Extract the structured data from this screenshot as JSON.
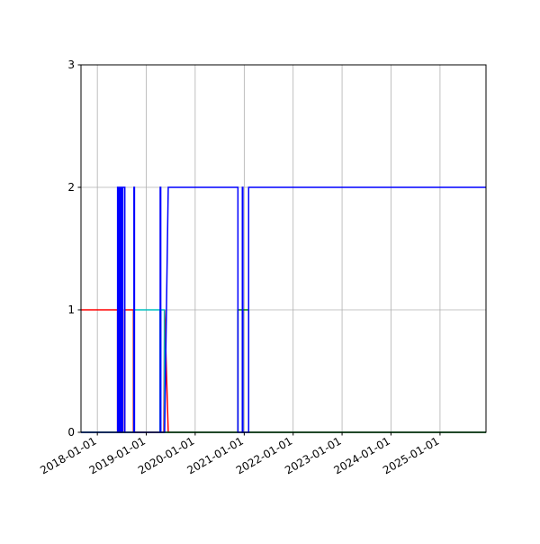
{
  "chart_data": {
    "type": "line",
    "title": "",
    "xlabel": "",
    "ylabel": "",
    "xlim": [
      "2017-09-01",
      "2025-12-10"
    ],
    "ylim": [
      0,
      3
    ],
    "grid": true,
    "x_ticks": [
      "2018-01-01",
      "2019-01-01",
      "2020-01-01",
      "2021-01-01",
      "2022-01-01",
      "2023-01-01",
      "2024-01-01",
      "2025-01-01"
    ],
    "y_ticks": [
      "0",
      "1",
      "2",
      "3"
    ],
    "series": [
      {
        "color": "#ff0000",
        "points": [
          [
            "2017-09-01",
            1
          ],
          [
            "2018-06-01",
            1
          ],
          [
            "2018-06-01",
            0
          ],
          [
            "2018-06-08",
            0
          ],
          [
            "2018-06-08",
            1
          ],
          [
            "2018-06-12",
            1
          ],
          [
            "2018-06-12",
            0
          ],
          [
            "2018-06-20",
            0
          ],
          [
            "2018-06-20",
            1
          ],
          [
            "2018-06-25",
            1
          ],
          [
            "2018-06-25",
            0
          ],
          [
            "2018-07-05",
            0
          ],
          [
            "2018-07-05",
            1
          ],
          [
            "2018-07-10",
            1
          ],
          [
            "2018-07-10",
            0
          ],
          [
            "2018-07-25",
            0
          ],
          [
            "2018-07-25",
            1
          ],
          [
            "2018-09-27",
            1
          ],
          [
            "2018-09-27",
            0
          ],
          [
            "2019-05-12",
            0
          ],
          [
            "2019-05-18",
            1
          ],
          [
            "2019-06-14",
            0
          ],
          [
            "2025-12-10",
            0
          ]
        ]
      },
      {
        "color": "#00bfbf",
        "points": [
          [
            "2017-09-01",
            0
          ],
          [
            "2018-09-30",
            0
          ],
          [
            "2018-09-30",
            1
          ],
          [
            "2019-04-14",
            1
          ],
          [
            "2019-04-14",
            0
          ],
          [
            "2019-04-20",
            0
          ],
          [
            "2019-04-20",
            1
          ],
          [
            "2019-05-16",
            1
          ],
          [
            "2019-05-16",
            0
          ],
          [
            "2025-12-10",
            0
          ]
        ]
      },
      {
        "color": "#008000",
        "points": [
          [
            "2017-09-01",
            0
          ],
          [
            "2020-11-15",
            0
          ],
          [
            "2020-11-15",
            1
          ],
          [
            "2020-12-18",
            1
          ],
          [
            "2020-12-18",
            0
          ],
          [
            "2020-12-22",
            0
          ],
          [
            "2020-12-22",
            1
          ],
          [
            "2021-02-03",
            1
          ],
          [
            "2021-02-03",
            0
          ],
          [
            "2025-12-10",
            0
          ]
        ]
      },
      {
        "color": "#0000ff",
        "points": [
          [
            "2017-09-01",
            0
          ],
          [
            "2018-06-01",
            0
          ],
          [
            "2018-06-01",
            2
          ],
          [
            "2018-06-08",
            2
          ],
          [
            "2018-06-08",
            0
          ],
          [
            "2018-06-12",
            0
          ],
          [
            "2018-06-12",
            2
          ],
          [
            "2018-06-20",
            2
          ],
          [
            "2018-06-20",
            0
          ],
          [
            "2018-06-25",
            0
          ],
          [
            "2018-06-25",
            2
          ],
          [
            "2018-07-05",
            2
          ],
          [
            "2018-07-05",
            0
          ],
          [
            "2018-07-10",
            0
          ],
          [
            "2018-07-10",
            2
          ],
          [
            "2018-07-25",
            2
          ],
          [
            "2018-07-25",
            0
          ],
          [
            "2018-10-01",
            0
          ],
          [
            "2018-10-01",
            2
          ],
          [
            "2018-10-05",
            2
          ],
          [
            "2018-10-05",
            0
          ],
          [
            "2019-04-15",
            0
          ],
          [
            "2019-04-15",
            2
          ],
          [
            "2019-04-19",
            2
          ],
          [
            "2019-04-19",
            0
          ],
          [
            "2019-05-18",
            0
          ],
          [
            "2019-06-14",
            2
          ],
          [
            "2020-11-15",
            2
          ],
          [
            "2020-11-15",
            0
          ],
          [
            "2020-12-18",
            0
          ],
          [
            "2020-12-18",
            2
          ],
          [
            "2020-12-22",
            2
          ],
          [
            "2020-12-22",
            0
          ],
          [
            "2021-02-03",
            0
          ],
          [
            "2021-02-03",
            2
          ],
          [
            "2025-12-10",
            2
          ]
        ]
      }
    ]
  }
}
